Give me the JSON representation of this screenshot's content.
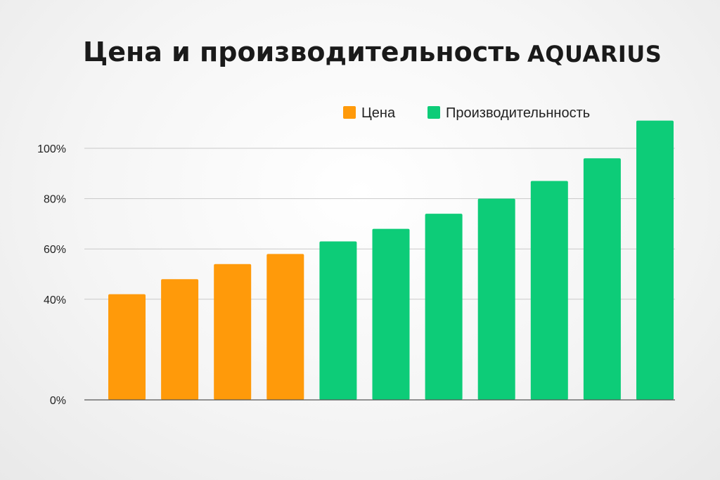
{
  "header": {
    "title": "Цена и производительность",
    "brand": "AQUARIUS"
  },
  "colors": {
    "price": "#ff9a0a",
    "performance": "#0dcc78",
    "grid": "#c9c9c9",
    "text": "#1a1a1a"
  },
  "chart_data": {
    "type": "bar",
    "title": "Цена и производительность",
    "xlabel": "",
    "ylabel": "",
    "y_ticks": [
      "0%",
      "40%",
      "60%",
      "80%",
      "100%"
    ],
    "y_tick_values": [
      0,
      40,
      60,
      80,
      100
    ],
    "grid": true,
    "legend_position": "top-right",
    "legend": [
      {
        "name": "Цена",
        "color": "#ff9a0a"
      },
      {
        "name": "Производительнность",
        "color": "#0dcc78"
      }
    ],
    "series": [
      {
        "name": "Цена",
        "color": "#ff9a0a",
        "values": [
          42,
          48,
          54,
          58,
          null,
          null,
          null,
          null,
          null,
          null,
          null
        ]
      },
      {
        "name": "Производительнность",
        "color": "#0dcc78",
        "values": [
          null,
          null,
          null,
          null,
          63,
          68,
          74,
          80,
          87,
          96,
          111
        ]
      }
    ]
  }
}
